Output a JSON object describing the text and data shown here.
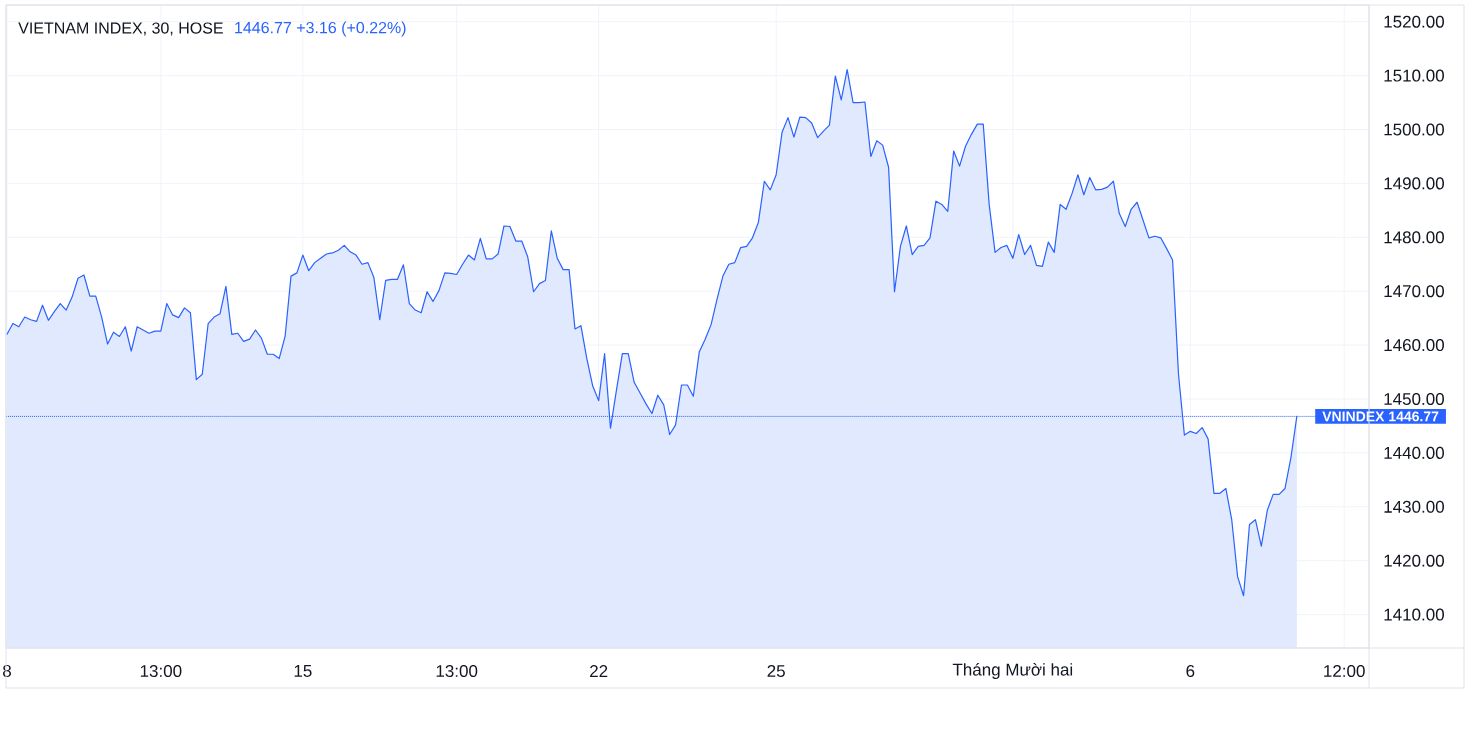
{
  "chart_data": {
    "type": "area",
    "title": "VIETNAM INDEX, 30, HOSE",
    "subtitle": "1446.77 +3.16 (+0.22%)",
    "color": "#2962ff",
    "line_style": "solid",
    "categories": [
      "8",
      null,
      null,
      null,
      null,
      null,
      null,
      null,
      null,
      null,
      null,
      null,
      null,
      null,
      null,
      null,
      null,
      null,
      null,
      null,
      null,
      null,
      null,
      null,
      null,
      null,
      "13:00",
      null,
      null,
      null,
      null,
      null,
      null,
      null,
      null,
      null,
      null,
      null,
      null,
      null,
      null,
      null,
      null,
      null,
      null,
      null,
      null,
      null,
      null,
      null,
      "15",
      null,
      null,
      null,
      null,
      null,
      null,
      null,
      null,
      null,
      null,
      null,
      null,
      null,
      null,
      null,
      null,
      null,
      null,
      null,
      null,
      null,
      null,
      null,
      null,
      null,
      "13:00",
      null,
      null,
      null,
      null,
      null,
      null,
      null,
      null,
      null,
      null,
      null,
      null,
      null,
      null,
      null,
      null,
      null,
      null,
      null,
      null,
      null,
      null,
      null,
      "22",
      null,
      null,
      null,
      null,
      null,
      null,
      null,
      null,
      null,
      null,
      null,
      null,
      null,
      null,
      null,
      null,
      null,
      null,
      null,
      null,
      null,
      null,
      null,
      null,
      null,
      null,
      null,
      null,
      null,
      "25",
      null,
      null,
      null,
      null,
      null,
      null,
      null,
      null,
      null,
      null,
      null,
      null,
      null,
      null,
      null,
      null,
      null,
      null,
      null,
      null,
      null,
      null,
      null,
      null,
      null,
      null,
      null,
      null,
      null,
      null,
      null,
      null,
      null,
      null,
      null,
      null,
      null,
      null,
      null,
      "Tháng Mười hai",
      null,
      null,
      null,
      null,
      null,
      null,
      null,
      null,
      null,
      null,
      null,
      null,
      null,
      null,
      null,
      null,
      null,
      null,
      null,
      null,
      null,
      null,
      null,
      null,
      null,
      null,
      null,
      null,
      null,
      "6",
      null,
      null,
      null,
      null,
      null,
      null,
      null,
      null,
      null,
      null,
      null,
      null,
      null,
      null,
      null,
      null,
      null,
      null,
      null,
      null,
      null,
      null,
      null,
      null,
      null,
      "12:00",
      null,
      null,
      null,
      null
    ],
    "values": [
      1462.0,
      1464.0,
      1463.4,
      1465.2,
      1464.7,
      1464.4,
      1467.4,
      1464.6,
      1466.2,
      1467.7,
      1466.5,
      1468.9,
      1472.4,
      1473.0,
      1469.1,
      1469.1,
      1465.2,
      1460.2,
      1462.4,
      1461.6,
      1463.4,
      1458.9,
      1463.4,
      1462.8,
      1462.2,
      1462.6,
      1462.6,
      1467.7,
      1465.6,
      1465.1,
      1466.9,
      1466.0,
      1453.6,
      1454.6,
      1464.0,
      1465.2,
      1465.8,
      1470.9,
      1462.0,
      1462.2,
      1460.7,
      1461.1,
      1462.8,
      1461.3,
      1458.3,
      1458.3,
      1457.5,
      1461.6,
      1472.8,
      1473.4,
      1476.7,
      1473.8,
      1475.3,
      1476.1,
      1476.9,
      1477.1,
      1477.6,
      1478.5,
      1477.3,
      1476.7,
      1475.0,
      1475.3,
      1472.6,
      1464.7,
      1472.0,
      1472.2,
      1472.2,
      1474.9,
      1467.7,
      1466.5,
      1466.0,
      1469.9,
      1468.1,
      1470.1,
      1473.4,
      1473.3,
      1473.1,
      1475.0,
      1476.7,
      1475.8,
      1479.8,
      1476.0,
      1476.0,
      1476.9,
      1482.1,
      1482.0,
      1479.3,
      1479.3,
      1476.4,
      1469.9,
      1471.4,
      1472.0,
      1481.2,
      1476.1,
      1474.0,
      1474.0,
      1463.0,
      1463.6,
      1457.5,
      1452.4,
      1449.7,
      1458.4,
      1444.6,
      1451.6,
      1458.4,
      1458.4,
      1453.1,
      1451.1,
      1449.1,
      1447.3,
      1450.7,
      1448.9,
      1443.4,
      1445.2,
      1452.6,
      1452.6,
      1450.5,
      1458.7,
      1461.1,
      1463.8,
      1468.5,
      1472.8,
      1475.0,
      1475.3,
      1478.1,
      1478.3,
      1479.9,
      1482.8,
      1490.4,
      1488.8,
      1491.6,
      1499.5,
      1502.2,
      1498.6,
      1502.3,
      1502.2,
      1501.2,
      1498.5,
      1499.7,
      1500.8,
      1509.9,
      1505.5,
      1511.1,
      1505.0,
      1505.0,
      1505.1,
      1495.0,
      1497.9,
      1497.1,
      1493.0,
      1469.9,
      1478.3,
      1482.1,
      1476.8,
      1478.3,
      1478.5,
      1479.9,
      1486.7,
      1486.1,
      1484.8,
      1496.0,
      1493.2,
      1496.9,
      1499.1,
      1501.0,
      1501.0,
      1486.1,
      1477.2,
      1478.1,
      1478.5,
      1476.1,
      1480.5,
      1476.8,
      1478.5,
      1474.8,
      1474.6,
      1479.1,
      1477.2,
      1486.1,
      1485.2,
      1488.1,
      1491.6,
      1487.9,
      1491.1,
      1488.8,
      1488.9,
      1489.3,
      1490.4,
      1484.4,
      1482.0,
      1485.2,
      1486.5,
      1483.2,
      1479.9,
      1480.2,
      1479.9,
      1477.9,
      1475.8,
      1454.6,
      1443.3,
      1444.0,
      1443.6,
      1444.7,
      1442.6,
      1432.5,
      1432.5,
      1433.4,
      1427.6,
      1417.0,
      1413.5,
      1426.7,
      1427.6,
      1422.7,
      1429.3,
      1432.3,
      1432.3,
      1433.4,
      1439.1,
      1446.77,
      null,
      null,
      null,
      null,
      null,
      null,
      null,
      null,
      null,
      null,
      null,
      null
    ],
    "ylim": [
      1403.8,
      1523.1
    ],
    "yticks": [
      {
        "value": 1410,
        "label": "1410.00"
      },
      {
        "value": 1420,
        "label": "1420.00"
      },
      {
        "value": 1430,
        "label": "1430.00"
      },
      {
        "value": 1440,
        "label": "1440.00"
      },
      {
        "value": 1450,
        "label": "1450.00"
      },
      {
        "value": 1460,
        "label": "1460.00"
      },
      {
        "value": 1470,
        "label": "1470.00"
      },
      {
        "value": 1480,
        "label": "1480.00"
      },
      {
        "value": 1490,
        "label": "1490.00"
      },
      {
        "value": 1500,
        "label": "1500.00"
      },
      {
        "value": 1510,
        "label": "1510.00"
      },
      {
        "value": 1520,
        "label": "1520.00"
      }
    ],
    "grid": true,
    "ref_lines": [
      {
        "axis": "y",
        "value": 1446.77,
        "label": "VNINDEX 1446.77",
        "color": "#2962ff",
        "line_style": "dotted"
      }
    ]
  }
}
